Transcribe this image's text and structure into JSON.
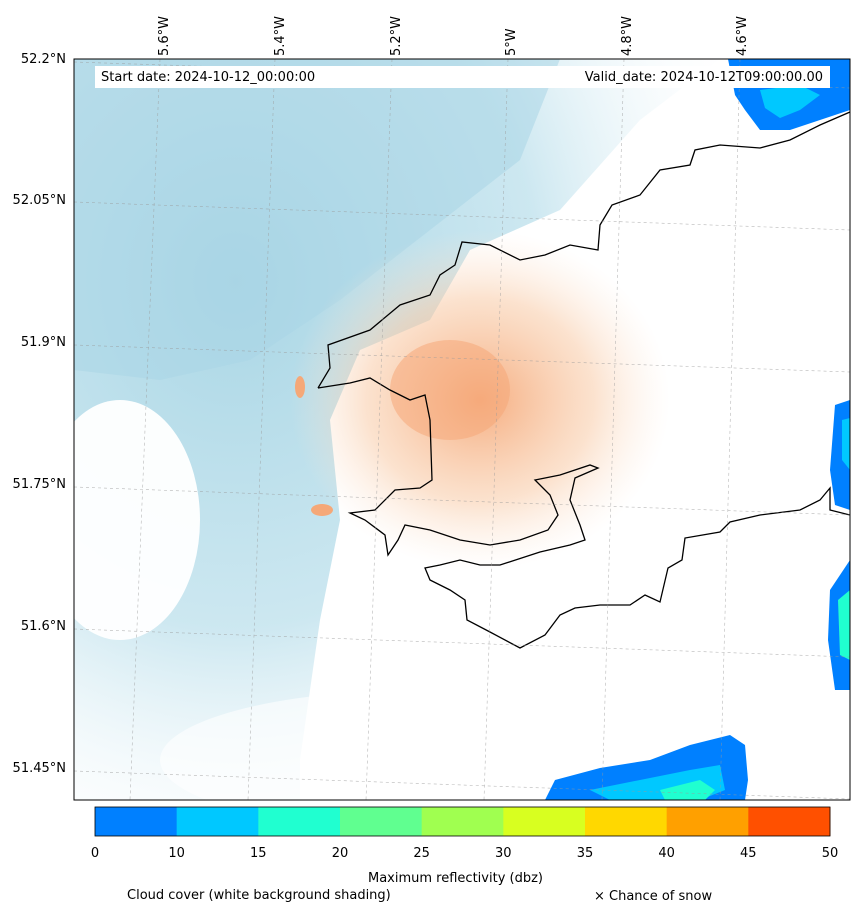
{
  "map": {
    "lon_labels": [
      "5.6°W",
      "5.4°W",
      "5.2°W",
      "5°W",
      "4.8°W",
      "4.6°W"
    ],
    "lat_labels": [
      "52.2°N",
      "52.05°N",
      "51.9°N",
      "51.75°N",
      "51.6°N",
      "51.45°N"
    ],
    "start_label": "Start date: 2024-10-12_00:00:00",
    "valid_label": "Valid_date: 2024-10-12T09:00:00.00",
    "land_fill": "#f5a878",
    "sea_shading": "#a9d6e5"
  },
  "colorbar": {
    "ticks": [
      "0",
      "10",
      "15",
      "20",
      "25",
      "30",
      "35",
      "40",
      "45",
      "50"
    ],
    "colors": [
      "#0080ff",
      "#00c8ff",
      "#20ffd0",
      "#60ff90",
      "#a0ff50",
      "#d8ff20",
      "#ffd800",
      "#ffa000",
      "#ff5000"
    ],
    "label": "Maximum reflectivity (dbz)"
  },
  "legend": {
    "cloud_cover": "Cloud cover (white background shading)",
    "snow": "× Chance of snow"
  }
}
